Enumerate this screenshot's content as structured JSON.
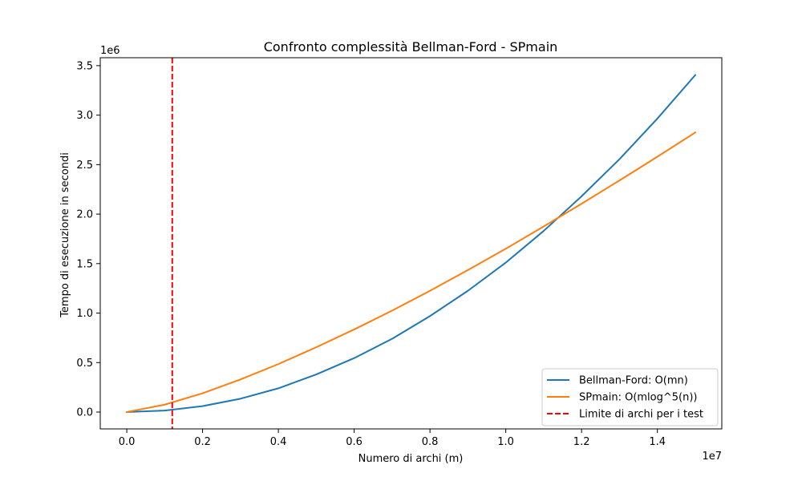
{
  "chart_data": {
    "type": "line",
    "title": "Confronto complessità Bellman-Ford - SPmain",
    "xlabel": "Numero di archi (m)",
    "ylabel": "Tempo di esecuzione in secondi",
    "x_offset_label": "1e7",
    "y_offset_label": "1e6",
    "xlim": [
      -700000,
      15700000
    ],
    "ylim": [
      -170000,
      3580000
    ],
    "x_ticks": [
      0,
      2000000,
      4000000,
      6000000,
      8000000,
      10000000,
      12000000,
      14000000
    ],
    "x_tick_labels": [
      "0.0",
      "0.2",
      "0.4",
      "0.6",
      "0.8",
      "1.0",
      "1.2",
      "1.4"
    ],
    "y_ticks": [
      0,
      500000,
      1000000,
      1500000,
      2000000,
      2500000,
      3000000,
      3500000
    ],
    "y_tick_labels": [
      "0.0",
      "0.5",
      "1.0",
      "1.5",
      "2.0",
      "2.5",
      "3.0",
      "3.5"
    ],
    "series": [
      {
        "name": "Bellman-Ford: O(mn)",
        "color": "#1f77b4",
        "style": "solid",
        "x": [
          0,
          1000000,
          2000000,
          3000000,
          4000000,
          5000000,
          6000000,
          7000000,
          8000000,
          9000000,
          10000000,
          11000000,
          12000000,
          13000000,
          14000000,
          15000000
        ],
        "y": [
          0,
          15000,
          60000,
          135000,
          240000,
          380000,
          545000,
          740000,
          970000,
          1225000,
          1510000,
          1830000,
          2180000,
          2555000,
          2965000,
          3405000
        ]
      },
      {
        "name": "SPmain: O(mlog^5(n))",
        "color": "#ff7f0e",
        "style": "solid",
        "x": [
          0,
          1000000,
          2000000,
          3000000,
          4000000,
          5000000,
          6000000,
          7000000,
          8000000,
          9000000,
          10000000,
          11000000,
          12000000,
          13000000,
          14000000,
          15000000
        ],
        "y": [
          0,
          75000,
          190000,
          330000,
          485000,
          655000,
          835000,
          1025000,
          1225000,
          1435000,
          1650000,
          1875000,
          2105000,
          2340000,
          2580000,
          2825000
        ]
      },
      {
        "name": "Limite di archi per i test",
        "color": "#ff0000",
        "style": "dashed",
        "vline_x": 1200000
      }
    ],
    "legend_position": "lower right",
    "grid": false
  }
}
